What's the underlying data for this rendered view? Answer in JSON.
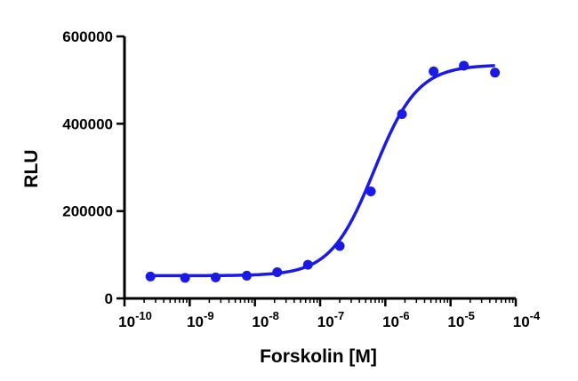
{
  "chart_data": {
    "type": "scatter",
    "xlabel": "Forskolin [M]",
    "ylabel": "RLU",
    "x_scale": "log",
    "xlim": [
      1e-10,
      0.0001
    ],
    "ylim": [
      0,
      600000
    ],
    "x_ticks": [
      {
        "value": 1e-10,
        "base": "10",
        "exp": "-10"
      },
      {
        "value": 1e-09,
        "base": "10",
        "exp": "-9"
      },
      {
        "value": 1e-08,
        "base": "10",
        "exp": "-8"
      },
      {
        "value": 1e-07,
        "base": "10",
        "exp": "-7"
      },
      {
        "value": 1e-06,
        "base": "10",
        "exp": "-6"
      },
      {
        "value": 1e-05,
        "base": "10",
        "exp": "-5"
      },
      {
        "value": 0.0001,
        "base": "10",
        "exp": "-4"
      }
    ],
    "y_ticks": [
      {
        "value": 0,
        "label": "0"
      },
      {
        "value": 200000,
        "label": "200000"
      },
      {
        "value": 400000,
        "label": "400000"
      },
      {
        "value": 600000,
        "label": "600000"
      }
    ],
    "grid": false,
    "legend": "none",
    "color": "#1a1ae6",
    "series": [
      {
        "points": [
          {
            "x": 2.5e-10,
            "y": 50000
          },
          {
            "x": 8.5e-10,
            "y": 47000
          },
          {
            "x": 2.5e-09,
            "y": 48000
          },
          {
            "x": 7.5e-09,
            "y": 52000
          },
          {
            "x": 2.2e-08,
            "y": 60000
          },
          {
            "x": 6.5e-08,
            "y": 77000
          },
          {
            "x": 2e-07,
            "y": 120000
          },
          {
            "x": 6e-07,
            "y": 245000
          },
          {
            "x": 1.8e-06,
            "y": 422000
          },
          {
            "x": 5.5e-06,
            "y": 520000
          },
          {
            "x": 1.6e-05,
            "y": 533000
          },
          {
            "x": 4.8e-05,
            "y": 517000
          }
        ],
        "fit": {
          "model": "sigmoidal dose-response",
          "bottom": 52000,
          "top": 535000,
          "logEC50": -6.17,
          "hill": 1.3
        }
      }
    ]
  }
}
